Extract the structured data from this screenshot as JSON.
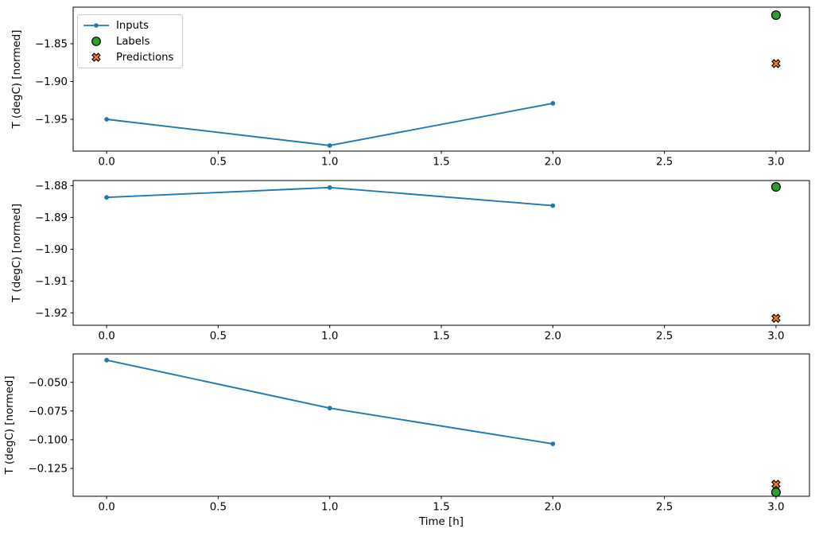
{
  "figure": {
    "background": "#ffffff",
    "colors": {
      "inputs": "#1f77b4",
      "labels": "#2ca02c",
      "predictions": "#ff7f0e",
      "marker_edge": "#000000",
      "axis": "#000000",
      "legend_border": "#cccccc"
    },
    "legend": {
      "position": "upper left",
      "subplot": 1,
      "entries": [
        {
          "label": "Inputs"
        },
        {
          "label": "Labels"
        },
        {
          "label": "Predictions"
        }
      ]
    }
  },
  "chart_data": [
    {
      "type": "line",
      "title": "",
      "xlabel": "",
      "ylabel": "T (degC) [normed]",
      "grid": false,
      "xlim": [
        -0.15,
        3.15
      ],
      "ylim": [
        -1.9921,
        -1.8016
      ],
      "xtick_values": [
        0.0,
        0.5,
        1.0,
        1.5,
        2.0,
        2.5,
        3.0
      ],
      "xtick_labels": [
        "0.0",
        "0.5",
        "1.0",
        "1.5",
        "2.0",
        "2.5",
        "3.0"
      ],
      "ytick_values": [
        -1.85,
        -1.9,
        -1.95
      ],
      "ytick_labels": [
        "−1.85",
        "−1.90",
        "−1.95"
      ],
      "series": [
        {
          "name": "Inputs",
          "style": "line-dot",
          "x": [
            0,
            1,
            2
          ],
          "y": [
            -1.95,
            -1.9847,
            -1.9289
          ]
        },
        {
          "name": "Labels",
          "style": "circle",
          "x": [
            3
          ],
          "y": [
            -1.8121
          ]
        },
        {
          "name": "Predictions",
          "style": "x",
          "x": [
            3
          ],
          "y": [
            -1.8763
          ]
        }
      ]
    },
    {
      "type": "line",
      "title": "",
      "xlabel": "",
      "ylabel": "T (degC) [normed]",
      "grid": false,
      "xlim": [
        -0.15,
        3.15
      ],
      "ylim": [
        -1.9239,
        -1.8784
      ],
      "xtick_values": [
        0.0,
        0.5,
        1.0,
        1.5,
        2.0,
        2.5,
        3.0
      ],
      "xtick_labels": [
        "0.0",
        "0.5",
        "1.0",
        "1.5",
        "2.0",
        "2.5",
        "3.0"
      ],
      "ytick_values": [
        -1.88,
        -1.89,
        -1.9,
        -1.91,
        -1.92
      ],
      "ytick_labels": [
        "−1.88",
        "−1.89",
        "−1.90",
        "−1.91",
        "−1.92"
      ],
      "series": [
        {
          "name": "Inputs",
          "style": "line-dot",
          "x": [
            0,
            1,
            2
          ],
          "y": [
            -1.8837,
            -1.8806,
            -1.8863
          ]
        },
        {
          "name": "Labels",
          "style": "circle",
          "x": [
            3
          ],
          "y": [
            -1.8804
          ]
        },
        {
          "name": "Predictions",
          "style": "x",
          "x": [
            3
          ],
          "y": [
            -1.9217
          ]
        }
      ]
    },
    {
      "type": "line",
      "title": "",
      "xlabel": "Time [h]",
      "ylabel": "T (degC) [normed]",
      "grid": false,
      "xlim": [
        -0.15,
        3.15
      ],
      "ylim": [
        -0.1492,
        -0.0253
      ],
      "xtick_values": [
        0.0,
        0.5,
        1.0,
        1.5,
        2.0,
        2.5,
        3.0
      ],
      "xtick_labels": [
        "0.0",
        "0.5",
        "1.0",
        "1.5",
        "2.0",
        "2.5",
        "3.0"
      ],
      "ytick_values": [
        -0.05,
        -0.075,
        -0.1,
        -0.125
      ],
      "ytick_labels": [
        "−0.050",
        "−0.075",
        "−0.100",
        "−0.125"
      ],
      "series": [
        {
          "name": "Inputs",
          "style": "line-dot",
          "x": [
            0,
            1,
            2
          ],
          "y": [
            -0.0307,
            -0.0725,
            -0.1036
          ]
        },
        {
          "name": "Labels",
          "style": "circle",
          "x": [
            3
          ],
          "y": [
            -0.1457
          ]
        },
        {
          "name": "Predictions",
          "style": "x",
          "x": [
            3
          ],
          "y": [
            -0.1388
          ]
        }
      ]
    }
  ]
}
